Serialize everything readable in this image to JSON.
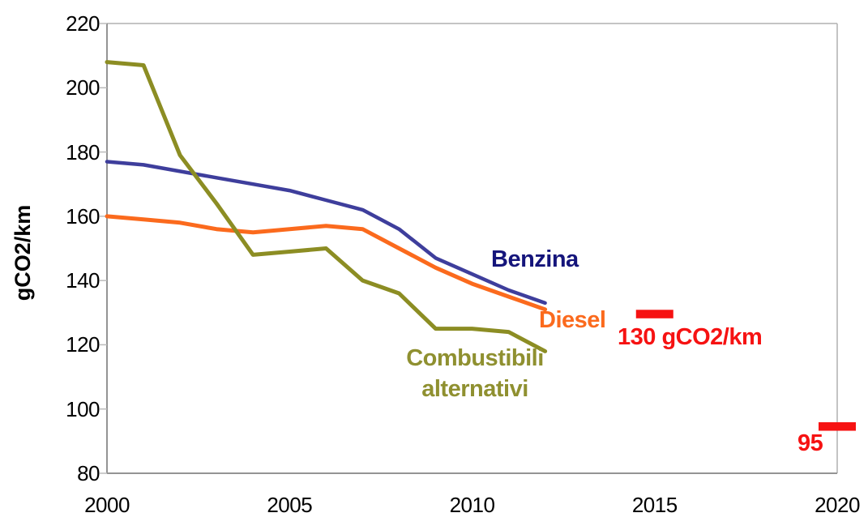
{
  "chart_data": {
    "type": "line",
    "title": "",
    "xlabel": "",
    "ylabel": "gCO2/km",
    "xlim": [
      2000,
      2020
    ],
    "ylim": [
      80,
      220
    ],
    "x_ticks": [
      2000,
      2005,
      2010,
      2015,
      2020
    ],
    "y_ticks": [
      80,
      100,
      120,
      140,
      160,
      180,
      200,
      220
    ],
    "grid": false,
    "legend": "inline-labels",
    "x": [
      2000,
      2001,
      2002,
      2003,
      2004,
      2005,
      2006,
      2007,
      2008,
      2009,
      2010,
      2011,
      2012
    ],
    "series": [
      {
        "name": "Benzina",
        "color": "#3e3e9c",
        "label_color": "#15157b",
        "line_width": 4.5,
        "values": [
          177,
          176,
          174,
          172,
          170,
          168,
          165,
          162,
          156,
          147,
          142,
          137,
          133
        ]
      },
      {
        "name": "Diesel",
        "color": "#fb6a1d",
        "label_color": "#fb6a1d",
        "line_width": 5,
        "values": [
          160,
          159,
          158,
          156,
          155,
          156,
          157,
          156,
          150,
          144,
          139,
          135,
          131
        ]
      },
      {
        "name": "Combustibili alternativi",
        "color": "#8c8d23",
        "label_color": "#8f9030",
        "line_width": 5,
        "values": [
          208,
          207,
          179,
          164,
          148,
          149,
          150,
          140,
          136,
          125,
          125,
          124,
          118
        ]
      }
    ],
    "targets": [
      {
        "label": "130 gCO2/km",
        "value": 130,
        "year": 2015,
        "color": "#f61212"
      },
      {
        "label": "95",
        "value": 95,
        "year": 2020,
        "color": "#f61212"
      }
    ]
  },
  "annotations": {
    "benzina_label": "Benzina",
    "diesel_label": "Diesel",
    "alt_label_line1": "Combustibili",
    "alt_label_line2": "alternativi",
    "target_130_label": "130 gCO2/km",
    "target_95_label": "95"
  },
  "axis": {
    "y_title": "gCO2/km",
    "axis_color": "#949494",
    "border_color": "#b0b0b0",
    "tick_color": "#bbbbbb"
  }
}
